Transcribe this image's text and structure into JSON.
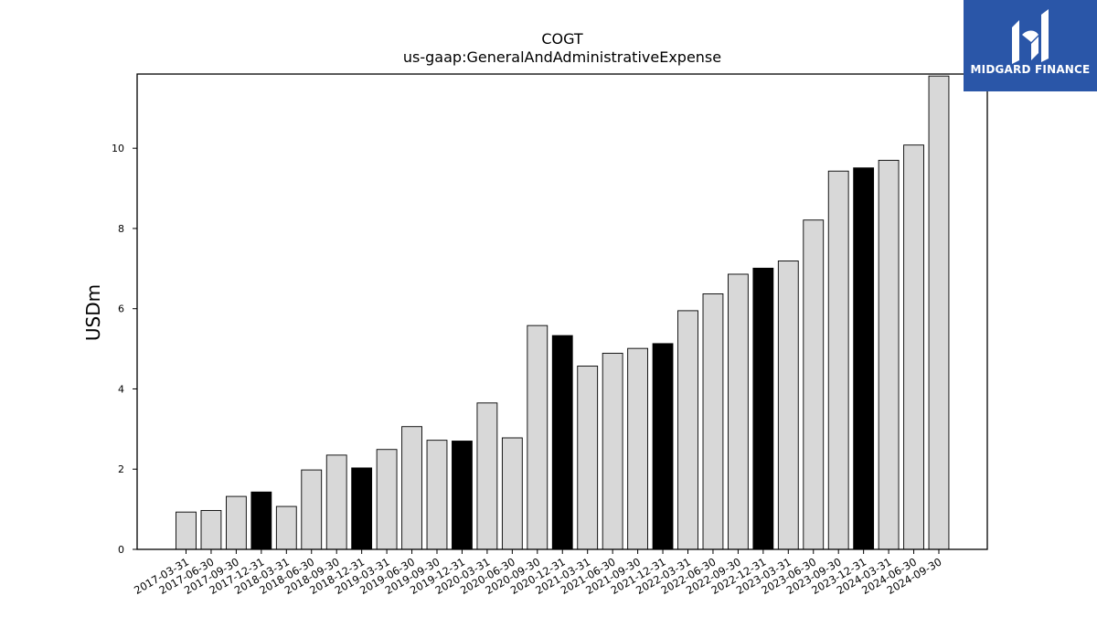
{
  "brand": {
    "name": "MIDGARD FINANCE",
    "bg_color": "#2a56a8"
  },
  "chart_data": {
    "type": "bar",
    "title": "COGT",
    "subtitle": "us-gaap:GeneralAndAdministrativeExpense",
    "xlabel": "",
    "ylabel": "USDm",
    "ylim": [
      0,
      11.85
    ],
    "yticks": [
      0,
      2,
      4,
      6,
      8,
      10
    ],
    "grid": false,
    "colors": {
      "quarter": "#d8d8d8",
      "year_end": "#000000",
      "edge": "#000000"
    },
    "categories": [
      "2017-03-31",
      "2017-06-30",
      "2017-09-30",
      "2017-12-31",
      "2018-03-31",
      "2018-06-30",
      "2018-09-30",
      "2018-12-31",
      "2019-03-31",
      "2019-06-30",
      "2019-09-30",
      "2019-12-31",
      "2020-03-31",
      "2020-06-30",
      "2020-09-30",
      "2020-12-31",
      "2021-03-31",
      "2021-06-30",
      "2021-09-30",
      "2021-12-31",
      "2022-03-31",
      "2022-06-30",
      "2022-09-30",
      "2022-12-31",
      "2023-03-31",
      "2023-06-30",
      "2023-09-30",
      "2023-12-31",
      "2024-03-31",
      "2024-06-30",
      "2024-09-30"
    ],
    "values": [
      0.93,
      0.97,
      1.32,
      1.43,
      1.07,
      1.98,
      2.35,
      2.03,
      2.49,
      3.06,
      2.72,
      2.7,
      3.65,
      2.78,
      5.58,
      5.33,
      4.57,
      4.89,
      5.01,
      5.13,
      5.95,
      6.37,
      6.86,
      7.01,
      7.19,
      8.21,
      9.43,
      9.51,
      9.7,
      10.08,
      11.8
    ],
    "highlight": [
      false,
      false,
      false,
      true,
      false,
      false,
      false,
      true,
      false,
      false,
      false,
      true,
      false,
      false,
      false,
      true,
      false,
      false,
      false,
      true,
      false,
      false,
      false,
      true,
      false,
      false,
      false,
      true,
      false,
      false,
      false
    ]
  }
}
